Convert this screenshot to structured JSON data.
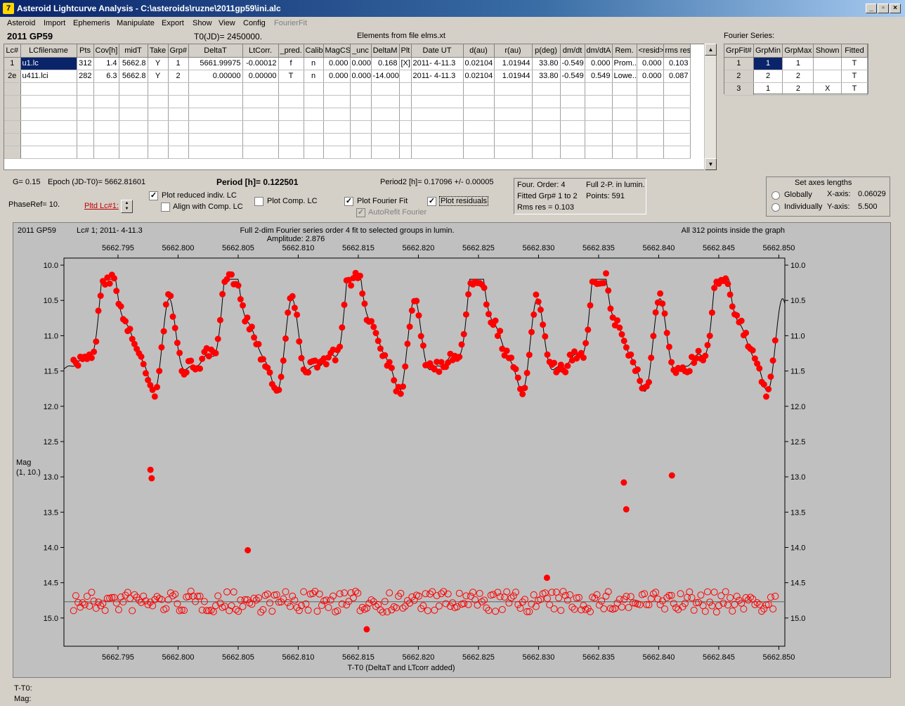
{
  "window": {
    "title": "Asteroid Lightcurve Analysis - C:\\asteroids\\ruzne\\2011gp59\\ini.alc",
    "icon": "app-icon"
  },
  "menu": [
    "Asteroid",
    "Import",
    "Ephemeris",
    "Manipulate",
    "Export",
    "Show",
    "View",
    "Config",
    "FourierFit"
  ],
  "header": {
    "asteroid": "2011 GP59",
    "t0": "T0(JD)= 2450000.",
    "elements": "Elements from file elms.xt"
  },
  "lc_table": {
    "columns": [
      "Lc#",
      "LCfilename",
      "Pts",
      "Cov[h]",
      "midT",
      "Take",
      "Grp#",
      "DeltaT",
      "LtCorr.",
      "_pred.",
      "Calib.",
      "MagCS",
      "_unc",
      "DeltaM",
      "Plt",
      "Date UT",
      "d(au)",
      "r(au)",
      "p(deg)",
      "dm/dt",
      "dm/dtA",
      "Rem.",
      "<resid>",
      "rms res"
    ],
    "rows": [
      [
        "1",
        "u1.lc",
        "312",
        "1.4",
        "5662.8",
        "Y",
        "1",
        "5661.99975",
        "-0.00012",
        "f",
        "n",
        "0.000",
        "0.000",
        "0.168",
        "[X]",
        "2011- 4-11.3",
        "0.02104",
        "1.01944",
        "33.80",
        "-0.549",
        "0.000",
        "Prom...",
        "0.000",
        "0.103"
      ],
      [
        "2e",
        "u411.lci",
        "282",
        "6.3",
        "5662.8",
        "Y",
        "2",
        "0.00000",
        "0.00000",
        "T",
        "n",
        "0.000",
        "0.000",
        "-14.000",
        "",
        "2011- 4-11.3",
        "0.02104",
        "1.01944",
        "33.80",
        "-0.549",
        "0.549",
        "Lowe...",
        "0.000",
        "0.087"
      ]
    ]
  },
  "fourier_series": {
    "title": "Fourier Series:",
    "columns": [
      "GrpFit#",
      "GrpMin",
      "GrpMax",
      "Shown",
      "Fitted"
    ],
    "rows": [
      [
        "1",
        "1",
        "1",
        "",
        "T"
      ],
      [
        "2",
        "2",
        "2",
        "",
        "T"
      ],
      [
        "3",
        "1",
        "2",
        "X",
        "T"
      ]
    ]
  },
  "info": {
    "g": "G= 0.15",
    "epoch": "Epoch (JD-T0)= 5662.81601",
    "period_label": "Period [h]= 0.122501",
    "period2": "Period2 [h]= 0.17096 +/- 0.00005",
    "phase_ref": "PhaseRef= 10.",
    "plotted_lc": "Pltd Lc#1:",
    "fit_box": {
      "order": "Four. Order:  4",
      "full": "Full 2-P. in lumin.",
      "fitted": "Fitted Grp# 1 to 2",
      "points": "Points: 591",
      "rms": "Rms res     = 0.103"
    }
  },
  "options": {
    "plot_reduced": {
      "label": "Plot reduced indiv. LC",
      "checked": true
    },
    "align": {
      "label": "Align with Comp. LC",
      "checked": false
    },
    "plot_comp": {
      "label": "Plot Comp. LC",
      "checked": false
    },
    "plot_fourier": {
      "label": "Plot Fourier Fit",
      "checked": true
    },
    "plot_residuals": {
      "label": "Plot residuals",
      "checked": true
    },
    "autorefit": {
      "label": "AutoRefit Fourier",
      "checked": true,
      "disabled": true
    }
  },
  "axes_box": {
    "title": "Set axes lengths",
    "globally": "Globally",
    "individually": "Individually",
    "x_label": "X-axis:",
    "x_val": "0.06029",
    "y_label": "Y-axis:",
    "y_val": "5.500"
  },
  "chart_data": {
    "type": "scatter",
    "top_left": "2011 GP59",
    "lc_info": "Lc# 1; 2011- 4-11.3",
    "title": "Full 2-dim Fourier series order 4 fit to selected groups in lumin.",
    "subtitle": "Amplitude: 2.876",
    "points_note": "All 312 points inside the graph",
    "xlabel": "T-T0 (DeltaT and LTcorr added)",
    "ylabel": "Mag",
    "ylabel2": "(1, 10.)",
    "xlim": [
      5662.7905,
      5662.8505
    ],
    "ylim": [
      15.4,
      9.9
    ],
    "xticks": [
      "5662.795",
      "5662.800",
      "5662.805",
      "5662.810",
      "5662.815",
      "5662.820",
      "5662.825",
      "5662.830",
      "5662.835",
      "5662.840",
      "5662.845",
      "5662.850"
    ],
    "yticks": [
      "10.0",
      "10.5",
      "11.0",
      "11.5",
      "12.0",
      "12.5",
      "13.0",
      "13.5",
      "14.0",
      "14.5",
      "15.0"
    ],
    "series": [
      {
        "name": "Fourier fit",
        "kind": "line",
        "color": "#000000",
        "period_days": 0.0051042,
        "mean": 11.0,
        "amplitude": 1.55
      },
      {
        "kind": "points",
        "color": "#ff0000"
      },
      {
        "kind": "residuals",
        "color": "#ff0000",
        "baseline": 14.77
      }
    ],
    "outliers": [
      [
        5662.7977,
        12.9
      ],
      [
        5662.7978,
        13.02
      ],
      [
        5662.8371,
        13.08
      ],
      [
        5662.8373,
        13.46
      ],
      [
        5662.8411,
        12.98
      ],
      [
        5662.8058,
        14.04
      ],
      [
        5662.8307,
        14.43
      ],
      [
        5662.8157,
        15.16
      ]
    ]
  },
  "status": {
    "t_line": "T-T0:",
    "mag_line": "Mag:"
  }
}
